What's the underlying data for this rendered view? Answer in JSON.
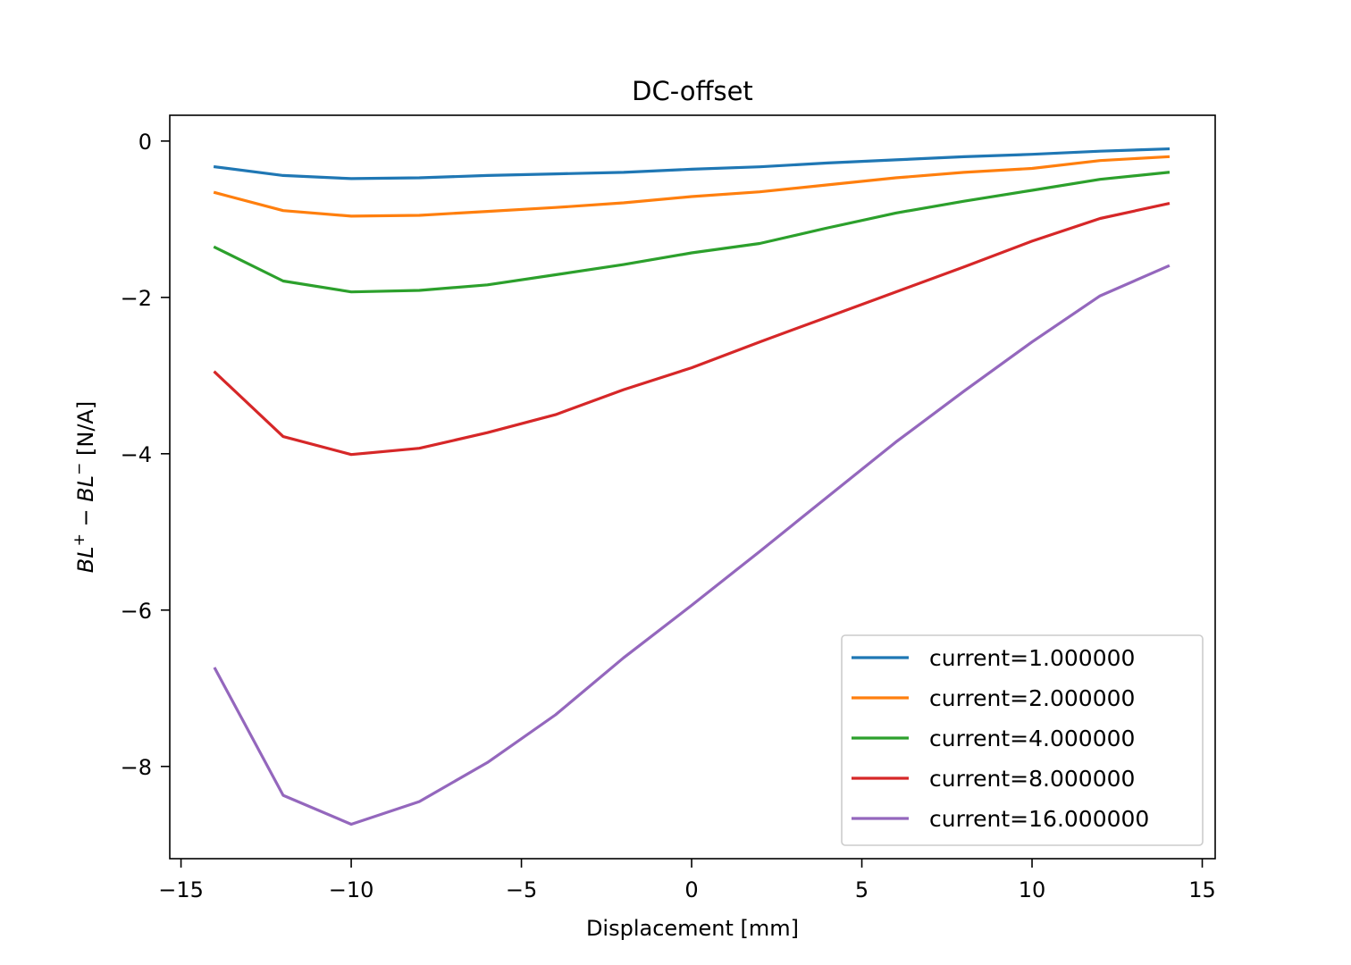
{
  "chart_data": {
    "type": "line",
    "title": "DC-offset",
    "xlabel": "Displacement [mm]",
    "ylabel": {
      "part1": "BL",
      "sup1": "+",
      "minus": " − ",
      "part2": "BL",
      "sup2": "−",
      "unit": " [N/A]"
    },
    "xlim": [
      -15.33,
      15.38
    ],
    "ylim": [
      -9.18,
      0.33
    ],
    "xticks": [
      -15,
      -10,
      -5,
      0,
      5,
      10,
      15
    ],
    "xtick_labels": [
      "−15",
      "−10",
      "−5",
      "0",
      "5",
      "10",
      "15"
    ],
    "yticks": [
      0,
      -2,
      -4,
      -6,
      -8
    ],
    "ytick_labels": [
      "0",
      "−2",
      "−4",
      "−6",
      "−8"
    ],
    "grid": false,
    "legend_position": "lower-right",
    "x": [
      -14,
      -12,
      -10,
      -8,
      -6,
      -4,
      -2,
      0,
      2,
      4,
      6,
      8,
      10,
      12,
      14
    ],
    "series": [
      {
        "name": "current=1.000000",
        "color": "#1f77b4",
        "values": [
          -0.33,
          -0.44,
          -0.48,
          -0.47,
          -0.44,
          -0.42,
          -0.4,
          -0.36,
          -0.33,
          -0.28,
          -0.24,
          -0.2,
          -0.17,
          -0.13,
          -0.1
        ]
      },
      {
        "name": "current=2.000000",
        "color": "#ff7f0e",
        "values": [
          -0.66,
          -0.89,
          -0.96,
          -0.95,
          -0.9,
          -0.85,
          -0.79,
          -0.71,
          -0.65,
          -0.56,
          -0.47,
          -0.4,
          -0.35,
          -0.25,
          -0.2
        ]
      },
      {
        "name": "current=4.000000",
        "color": "#2ca02c",
        "values": [
          -1.36,
          -1.79,
          -1.93,
          -1.91,
          -1.84,
          -1.71,
          -1.58,
          -1.43,
          -1.31,
          -1.11,
          -0.92,
          -0.77,
          -0.63,
          -0.49,
          -0.4
        ]
      },
      {
        "name": "current=8.000000",
        "color": "#d62728",
        "values": [
          -2.96,
          -3.78,
          -4.01,
          -3.93,
          -3.73,
          -3.5,
          -3.18,
          -2.9,
          -2.57,
          -2.25,
          -1.93,
          -1.61,
          -1.28,
          -0.99,
          -0.8
        ]
      },
      {
        "name": "current=16.000000",
        "color": "#9467bd",
        "values": [
          -6.75,
          -8.37,
          -8.74,
          -8.45,
          -7.95,
          -7.34,
          -6.61,
          -5.94,
          -5.25,
          -4.55,
          -3.85,
          -3.2,
          -2.57,
          -1.98,
          -1.6
        ]
      }
    ]
  }
}
